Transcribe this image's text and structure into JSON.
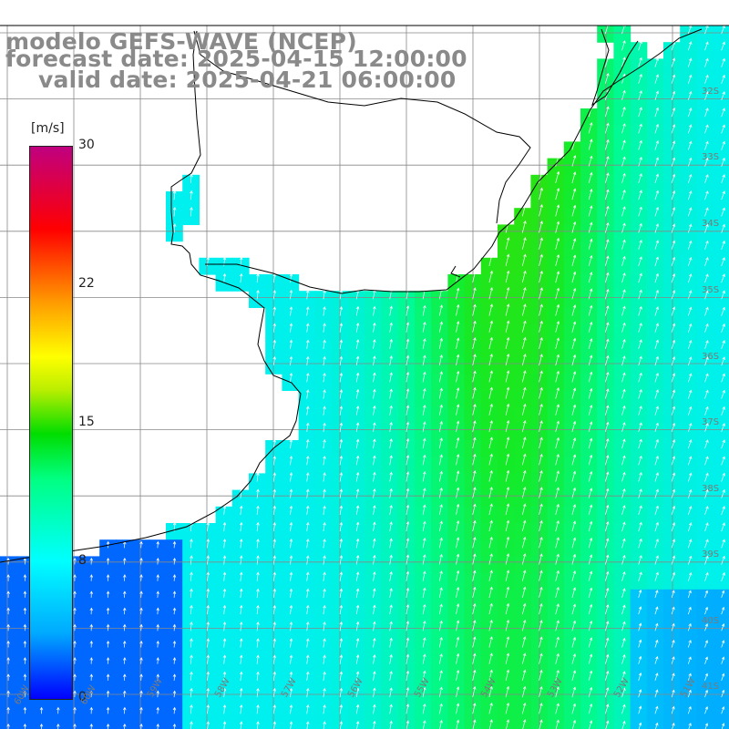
{
  "title": {
    "line1": "modelo GEFS-WAVE (NCEP)",
    "line2": "forecast date: 2025-04-15 12:00:00",
    "line3": "valid date: 2025-04-21 06:00:00"
  },
  "colorbar": {
    "unit": "[m/s]",
    "ticks": [
      "30",
      "22",
      "15",
      "8",
      "0"
    ],
    "colors": [
      "#0000ff",
      "#00aaff",
      "#00ffff",
      "#00ff80",
      "#00dd00",
      "#ffff00",
      "#ff9900",
      "#ff0000",
      "#c00080"
    ]
  },
  "lat_labels": [
    "32S",
    "33S",
    "34S",
    "35S",
    "36S",
    "37S",
    "38S",
    "39S",
    "40S",
    "41S"
  ],
  "lon_labels": [
    "60W",
    "59W",
    "58W",
    "57W",
    "56W",
    "55W",
    "54W",
    "53W",
    "52W",
    "51W"
  ],
  "colors": {
    "land": "#ffffff",
    "coast": "#000000",
    "grid": "#808080",
    "arrow": "#ffffff",
    "title": "#8a8a8a"
  }
}
